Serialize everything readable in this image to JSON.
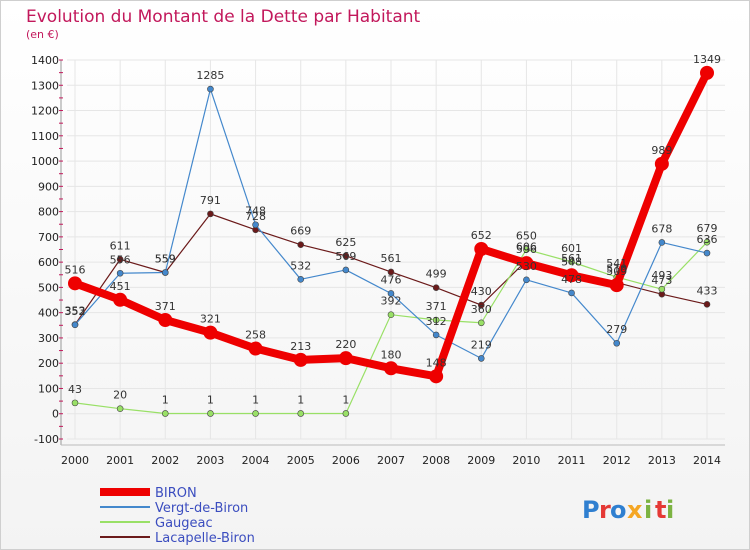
{
  "chart_data": {
    "type": "line",
    "title": "Evolution du Montant de la Dette par Habitant",
    "subtitle": "(en €)",
    "xlabel": "",
    "ylabel": "",
    "ylim": [
      -100,
      1400
    ],
    "yticks": [
      -100,
      0,
      100,
      200,
      300,
      400,
      500,
      600,
      700,
      800,
      900,
      1000,
      1100,
      1200,
      1300,
      1400
    ],
    "categories": [
      "2000",
      "2001",
      "2002",
      "2003",
      "2004",
      "2005",
      "2006",
      "2007",
      "2008",
      "2009",
      "2010",
      "2011",
      "2012",
      "2013",
      "2014"
    ],
    "series": [
      {
        "name": "Lacapelle-Biron",
        "color": "#6b1a1a",
        "values": [
          353,
          611,
          559,
          791,
          728,
          669,
          625,
          561,
          499,
          430,
          606,
          561,
          519,
          473,
          433
        ]
      },
      {
        "name": "Gaugeac",
        "color": "#99e066",
        "values": [
          43,
          20,
          1,
          1,
          1,
          1,
          1,
          392,
          371,
          360,
          650,
          601,
          541,
          493,
          679
        ]
      },
      {
        "name": "Vergt-de-Biron",
        "color": "#4488cc",
        "values": [
          352,
          556,
          559,
          1285,
          748,
          532,
          569,
          476,
          312,
          219,
          530,
          478,
          279,
          678,
          636
        ]
      },
      {
        "name": "BIRON",
        "color": "#ee0000",
        "values": [
          516,
          451,
          371,
          321,
          258,
          213,
          220,
          180,
          148,
          652,
          596,
          548,
          509,
          989,
          1349
        ]
      }
    ],
    "legend": [
      "BIRON",
      "Vergt-de-Biron",
      "Gaugeac",
      "Lacapelle-Biron"
    ],
    "legend_position": "bottom-left"
  },
  "branding": {
    "logo_text": "Proxiti",
    "logo_letters": [
      "P",
      "r",
      "o",
      "x",
      "i",
      "t",
      "i"
    ]
  }
}
